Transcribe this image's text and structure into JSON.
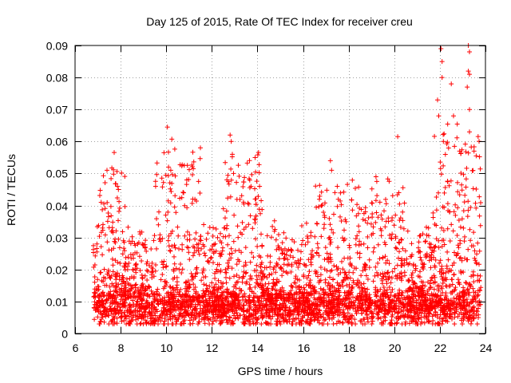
{
  "chart_data": {
    "type": "scatter",
    "title": "Day 125 of 2015, Rate Of TEC Index for receiver creu",
    "xlabel": "GPS time / hours",
    "ylabel": "ROTI / TECUs",
    "xlim": [
      6,
      24
    ],
    "ylim": [
      0,
      0.09
    ],
    "xticks": [
      6,
      8,
      10,
      12,
      14,
      16,
      18,
      20,
      22,
      24
    ],
    "xtick_labels": [
      "6",
      "8",
      "10",
      "12",
      "14",
      "16",
      "18",
      "20",
      "22",
      "24"
    ],
    "yticks": [
      0,
      0.01,
      0.02,
      0.03,
      0.04,
      0.05,
      0.06,
      0.07,
      0.08,
      0.09
    ],
    "ytick_labels": [
      "0",
      "0.01",
      "0.02",
      "0.03",
      "0.04",
      "0.05",
      "0.06",
      "0.07",
      "0.08",
      "0.09"
    ],
    "grid": true,
    "marker": "+",
    "marker_color": "#ff0000",
    "series": [
      {
        "name": "ROTI",
        "x_range": [
          6.8,
          23.8
        ],
        "baseline_values": [
          0.01,
          0.012
        ],
        "notable_points": [
          {
            "x": 7.4,
            "y": 0.051
          },
          {
            "x": 7.9,
            "y": 0.045
          },
          {
            "x": 10.05,
            "y": 0.0645
          },
          {
            "x": 10.1,
            "y": 0.052
          },
          {
            "x": 10.2,
            "y": 0.051
          },
          {
            "x": 10.9,
            "y": 0.048
          },
          {
            "x": 12.8,
            "y": 0.062
          },
          {
            "x": 12.85,
            "y": 0.06
          },
          {
            "x": 12.9,
            "y": 0.056
          },
          {
            "x": 12.95,
            "y": 0.05
          },
          {
            "x": 13.9,
            "y": 0.042
          },
          {
            "x": 17.2,
            "y": 0.054
          },
          {
            "x": 17.25,
            "y": 0.051
          },
          {
            "x": 17.5,
            "y": 0.046
          },
          {
            "x": 19.2,
            "y": 0.049
          },
          {
            "x": 20.15,
            "y": 0.0615
          },
          {
            "x": 20.2,
            "y": 0.044
          },
          {
            "x": 21.9,
            "y": 0.073
          },
          {
            "x": 21.95,
            "y": 0.068
          },
          {
            "x": 22.05,
            "y": 0.089
          },
          {
            "x": 22.1,
            "y": 0.085
          },
          {
            "x": 22.1,
            "y": 0.08
          },
          {
            "x": 22.5,
            "y": 0.078
          },
          {
            "x": 22.6,
            "y": 0.068
          },
          {
            "x": 23.25,
            "y": 0.09
          },
          {
            "x": 23.3,
            "y": 0.088
          },
          {
            "x": 23.25,
            "y": 0.082
          },
          {
            "x": 23.3,
            "y": 0.081
          },
          {
            "x": 23.2,
            "y": 0.077
          },
          {
            "x": 23.3,
            "y": 0.07
          },
          {
            "x": 23.3,
            "y": 0.063
          },
          {
            "x": 23.5,
            "y": 0.057
          }
        ]
      }
    ]
  }
}
